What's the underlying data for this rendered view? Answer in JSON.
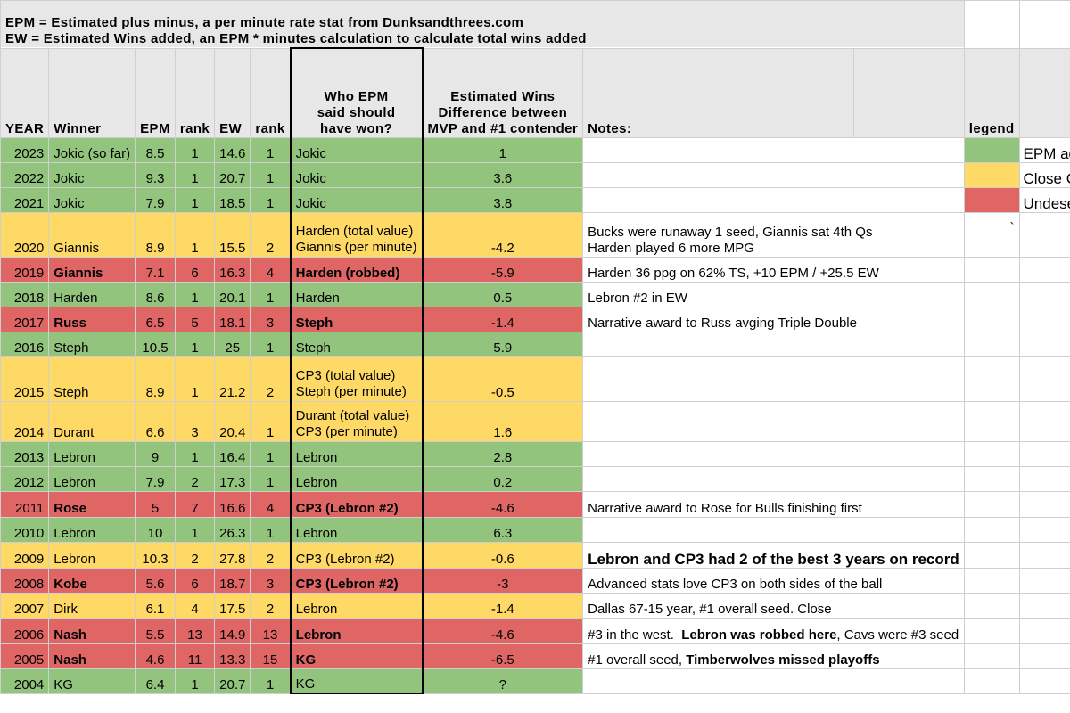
{
  "intro": {
    "line1": "EPM = Estimated plus minus, a per minute rate stat from Dunksandthrees.com",
    "line2": "EW = Estimated Wins added, an EPM * minutes calculation to calculate total wins added"
  },
  "headers": {
    "year": "YEAR",
    "winner": "Winner",
    "epm": "EPM",
    "epm_rank": "rank",
    "ew": "EW",
    "ew_rank": "rank",
    "who_line1": "Who EPM",
    "who_line2": "said should",
    "who_line3": "have won?",
    "diff_line1": "Estimated Wins",
    "diff_line2": "Difference between",
    "diff_line3": "MVP and #1 contender",
    "notes": "Notes:",
    "legend": "legend"
  },
  "legend": {
    "green": "EPM agrees",
    "yellow": "Close Call",
    "red": "Undeserving",
    "colors": {
      "green": "#93c47d",
      "yellow": "#ffd966",
      "red": "#e06666"
    }
  },
  "rows": [
    {
      "year": "2023",
      "winner": "Jokic (so far)",
      "epm": "8.5",
      "epm_rank": "1",
      "ew": "14.6",
      "ew_rank": "1",
      "who": "Jokic",
      "who2": "",
      "diff": "1",
      "note": "",
      "note2": ""
    },
    {
      "year": "2022",
      "winner": "Jokic",
      "epm": "9.3",
      "epm_rank": "1",
      "ew": "20.7",
      "ew_rank": "1",
      "who": "Jokic",
      "who2": "",
      "diff": "3.6",
      "note": "",
      "note2": ""
    },
    {
      "year": "2021",
      "winner": "Jokic",
      "epm": "7.9",
      "epm_rank": "1",
      "ew": "18.5",
      "ew_rank": "1",
      "who": "Jokic",
      "who2": "",
      "diff": "3.8",
      "note": "",
      "note2": ""
    },
    {
      "year": "2020",
      "winner": "Giannis",
      "epm": "8.9",
      "epm_rank": "1",
      "ew": "15.5",
      "ew_rank": "2",
      "who": "Harden (total value)",
      "who2": "Giannis (per minute)",
      "diff": "-4.2",
      "note": "Bucks were runaway 1 seed, Giannis sat 4th Qs",
      "note2": "Harden played 6 more MPG",
      "extra": "`"
    },
    {
      "year": "2019",
      "winner": "Giannis",
      "epm": "7.1",
      "epm_rank": "6",
      "ew": "16.3",
      "ew_rank": "4",
      "who": "Harden (robbed)",
      "who2": "",
      "diff": "-5.9",
      "note": "Harden 36 ppg on 62% TS, +10 EPM / +25.5 EW",
      "note2": ""
    },
    {
      "year": "2018",
      "winner": "Harden",
      "epm": "8.6",
      "epm_rank": "1",
      "ew": "20.1",
      "ew_rank": "1",
      "who": "Harden",
      "who2": "",
      "diff": "0.5",
      "note": "Lebron #2 in EW",
      "note2": ""
    },
    {
      "year": "2017",
      "winner": "Russ",
      "epm": "6.5",
      "epm_rank": "5",
      "ew": "18.1",
      "ew_rank": "3",
      "who": "Steph",
      "who2": "",
      "diff": "-1.4",
      "note": "Narrative award to Russ avging Triple Double",
      "note2": ""
    },
    {
      "year": "2016",
      "winner": "Steph",
      "epm": "10.5",
      "epm_rank": "1",
      "ew": "25",
      "ew_rank": "1",
      "who": "Steph",
      "who2": "",
      "diff": "5.9",
      "note": "",
      "note2": ""
    },
    {
      "year": "2015",
      "winner": "Steph",
      "epm": "8.9",
      "epm_rank": "1",
      "ew": "21.2",
      "ew_rank": "2",
      "who": "CP3 (total value)",
      "who2": "Steph (per minute)",
      "diff": "-0.5",
      "note": "",
      "note2": ""
    },
    {
      "year": "2014",
      "winner": "Durant",
      "epm": "6.6",
      "epm_rank": "3",
      "ew": "20.4",
      "ew_rank": "1",
      "who": "Durant (total value)",
      "who2": "CP3 (per minute)",
      "diff": "1.6",
      "note": "",
      "note2": ""
    },
    {
      "year": "2013",
      "winner": "Lebron",
      "epm": "9",
      "epm_rank": "1",
      "ew": "16.4",
      "ew_rank": "1",
      "who": "Lebron",
      "who2": "",
      "diff": "2.8",
      "note": "",
      "note2": ""
    },
    {
      "year": "2012",
      "winner": "Lebron",
      "epm": "7.9",
      "epm_rank": "2",
      "ew": "17.3",
      "ew_rank": "1",
      "who": "Lebron",
      "who2": "",
      "diff": "0.2",
      "note": "",
      "note2": ""
    },
    {
      "year": "2011",
      "winner": "Rose",
      "epm": "5",
      "epm_rank": "7",
      "ew": "16.6",
      "ew_rank": "4",
      "who": "CP3  (Lebron #2)",
      "who2": "",
      "diff": "-4.6",
      "note": "Narrative award to Rose for Bulls finishing first",
      "note2": ""
    },
    {
      "year": "2010",
      "winner": "Lebron",
      "epm": "10",
      "epm_rank": "1",
      "ew": "26.3",
      "ew_rank": "1",
      "who": "Lebron",
      "who2": "",
      "diff": "6.3",
      "note": "",
      "note2": ""
    },
    {
      "year": "2009",
      "winner": "Lebron",
      "epm": "10.3",
      "epm_rank": "2",
      "ew": "27.8",
      "ew_rank": "2",
      "who": "CP3  (Lebron #2)",
      "who2": "",
      "diff": "-0.6",
      "note": "Lebron and CP3 had 2 of the best 3 years on record",
      "note2": ""
    },
    {
      "year": "2008",
      "winner": "Kobe",
      "epm": "5.6",
      "epm_rank": "6",
      "ew": "18.7",
      "ew_rank": "3",
      "who": "CP3  (Lebron #2)",
      "who2": "",
      "diff": "-3",
      "note": "Advanced stats love CP3 on both sides of the ball",
      "note2": ""
    },
    {
      "year": "2007",
      "winner": "Dirk",
      "epm": "6.1",
      "epm_rank": "4",
      "ew": "17.5",
      "ew_rank": "2",
      "who": "Lebron",
      "who2": "",
      "diff": "-1.4",
      "note": "Dallas 67-15 year, #1 overall seed.  Close",
      "note2": ""
    },
    {
      "year": "2006",
      "winner": "Nash",
      "epm": "5.5",
      "epm_rank": "13",
      "ew": "14.9",
      "ew_rank": "13",
      "who": "Lebron",
      "who2": "",
      "diff": "-4.6",
      "note": "#3 in the west.  ",
      "note_bold": "Lebron was robbed here",
      "note_tail": ", Cavs were #3 seed",
      "note2": ""
    },
    {
      "year": "2005",
      "winner": "Nash",
      "epm": "4.6",
      "epm_rank": "11",
      "ew": "13.3",
      "ew_rank": "15",
      "who": "KG",
      "who2": "",
      "diff": "-6.5",
      "note": "#1 overall seed, ",
      "note_bold": "Timberwolves missed playoffs",
      "note_tail": "",
      "note2": ""
    },
    {
      "year": "2004",
      "winner": "KG",
      "epm": "6.4",
      "epm_rank": "1",
      "ew": "20.7",
      "ew_rank": "1",
      "who": "KG",
      "who2": "",
      "diff": "?",
      "note": "",
      "note2": ""
    }
  ]
}
